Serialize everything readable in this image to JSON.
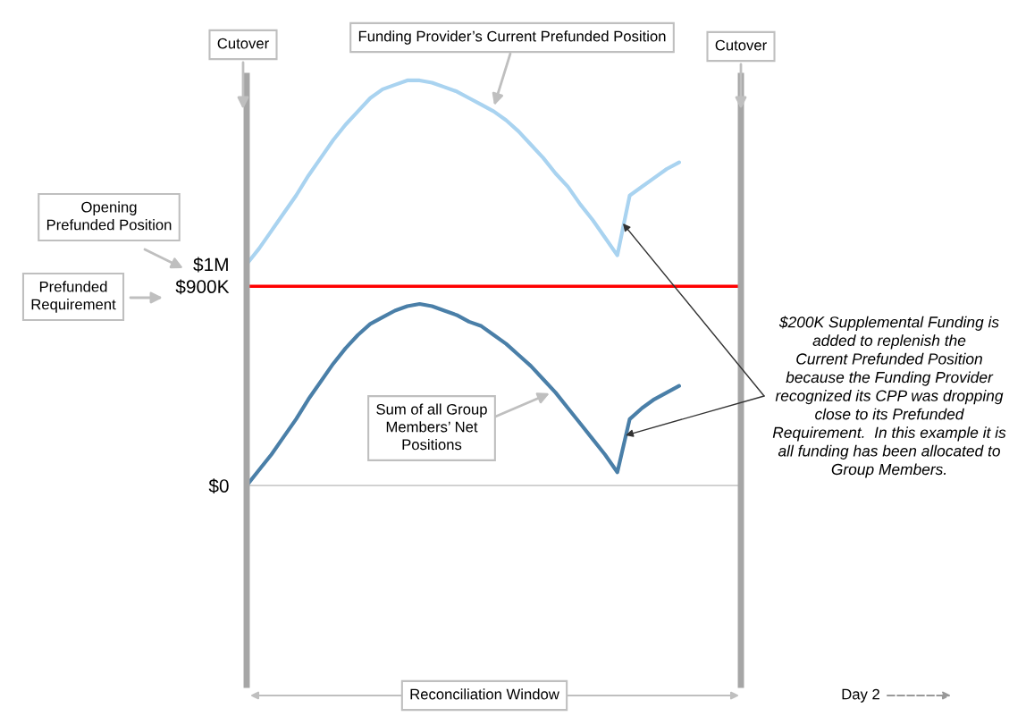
{
  "chart_data": {
    "type": "line",
    "categories": [
      null,
      null,
      null,
      null,
      null,
      null,
      null,
      null,
      null,
      null,
      null,
      null,
      null,
      null,
      null,
      null,
      null,
      null,
      null,
      null,
      null,
      null,
      null,
      null,
      null,
      null,
      null,
      null,
      null,
      null,
      null,
      null,
      null,
      null,
      null,
      null,
      null,
      null,
      null,
      null,
      null
    ],
    "series": [
      {
        "color": "#a9d3f0",
        "values": [
          1000000,
          1070000,
          1150000,
          1230000,
          1310000,
          1400000,
          1480000,
          1560000,
          1630000,
          1690000,
          1750000,
          1790000,
          1810000,
          1830000,
          1830000,
          1820000,
          1800000,
          1780000,
          1750000,
          1720000,
          1690000,
          1650000,
          1600000,
          1540000,
          1480000,
          1410000,
          1350000,
          1270000,
          1200000,
          1120000,
          1040000,
          1310000,
          1350000,
          1390000,
          1430000,
          1460000,
          null,
          null,
          null,
          null,
          null
        ]
      },
      {
        "color": "#4a7fa8",
        "values": [
          0,
          70000,
          140000,
          220000,
          300000,
          390000,
          470000,
          550000,
          620000,
          680000,
          730000,
          760000,
          790000,
          810000,
          820000,
          810000,
          790000,
          770000,
          740000,
          720000,
          680000,
          640000,
          590000,
          540000,
          480000,
          420000,
          350000,
          280000,
          210000,
          140000,
          60000,
          300000,
          350000,
          390000,
          420000,
          450000,
          null,
          null,
          null,
          null,
          null
        ]
      }
    ],
    "ylim": [
      -900000,
      1850000
    ],
    "yticks": [
      {
        "value": 0,
        "label": "$0"
      },
      {
        "value": 900000,
        "label": "$900K"
      },
      {
        "value": 1000000,
        "label": "$1M"
      }
    ],
    "tick_labels": "y",
    "ref_lines": [
      {
        "axis": "y",
        "value": 900000,
        "color": "#ff0000"
      },
      {
        "axis": "y",
        "value": 0,
        "color": "#cccccc"
      }
    ],
    "annotations": [
      "Cutover",
      "Cutover",
      "Funding Provider’s Current Prefunded Position",
      "Opening\nPrefunded Position",
      "Prefunded\nRequirement",
      "Sum of all Group\nMembers’ Net\nPositions",
      "$200K Supplemental Funding is\nadded to replenish the\nCurrent Prefunded Position\nbecause the Funding Provider\nrecognized its CPP was dropping\nclose to its Prefunded\nRequirement.  In this example it is\nall funding has been allocated to\nGroup Members.",
      "Reconciliation Window",
      "Day 2"
    ]
  }
}
